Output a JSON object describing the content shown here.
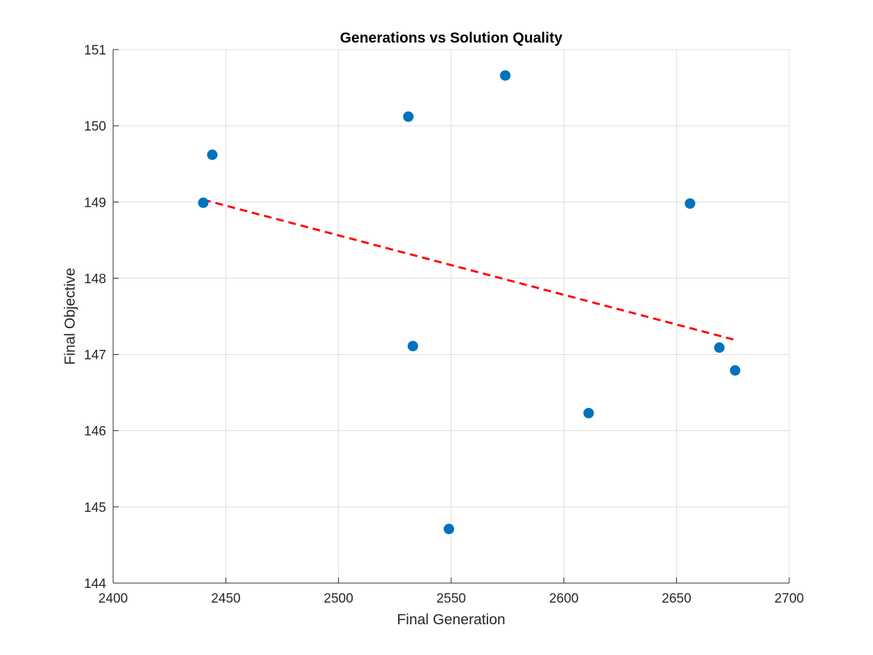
{
  "chart_data": {
    "type": "scatter",
    "title": "Generations vs Solution Quality",
    "xlabel": "Final Generation",
    "ylabel": "Final Objective",
    "xlim": [
      2400,
      2700
    ],
    "ylim": [
      144,
      151
    ],
    "xticks": [
      2400,
      2450,
      2500,
      2550,
      2600,
      2650,
      2700
    ],
    "yticks": [
      144,
      145,
      146,
      147,
      148,
      149,
      150,
      151
    ],
    "grid": true,
    "series": [
      {
        "kind": "points",
        "color": "#0072BD",
        "marker": "filled-circle",
        "x": [
          2440,
          2444,
          2531,
          2533,
          2549,
          2574,
          2611,
          2656,
          2669,
          2676
        ],
        "y": [
          148.99,
          149.62,
          150.12,
          147.11,
          144.71,
          150.66,
          146.23,
          148.98,
          147.09,
          146.79
        ]
      },
      {
        "kind": "trendline",
        "color": "#FF0000",
        "line_style": "dashed",
        "x": [
          2440,
          2676
        ],
        "y": [
          149.03,
          147.19
        ]
      }
    ]
  }
}
